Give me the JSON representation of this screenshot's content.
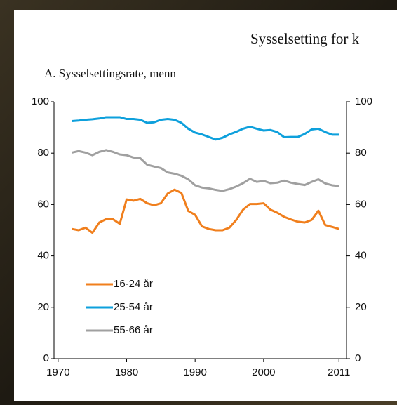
{
  "chart_data": {
    "type": "line",
    "title": "Sysselsetting for k",
    "subtitle": "A. Sysselsettingsrate, menn",
    "x": [
      1972,
      1973,
      1974,
      1975,
      1976,
      1977,
      1978,
      1979,
      1980,
      1981,
      1982,
      1983,
      1984,
      1985,
      1986,
      1987,
      1988,
      1989,
      1990,
      1991,
      1992,
      1993,
      1994,
      1995,
      1996,
      1997,
      1998,
      1999,
      2000,
      2001,
      2002,
      2003,
      2004,
      2005,
      2006,
      2007,
      2008,
      2009,
      2010,
      2011
    ],
    "series": [
      {
        "name": "16-24 år",
        "color": "#f07f1d",
        "values": [
          50.5,
          50,
          51,
          49,
          53,
          54.3,
          54.3,
          52.5,
          62,
          61.5,
          62.2,
          60.5,
          59.7,
          60.5,
          64.3,
          65.8,
          64.5,
          57.5,
          56,
          51.5,
          50.5,
          50,
          50,
          51,
          54,
          58,
          60.2,
          60.2,
          60.5,
          58,
          56.8,
          55.2,
          54.2,
          53.3,
          53,
          54,
          57.6,
          52,
          51.3,
          50.5
        ]
      },
      {
        "name": "25-54 år",
        "color": "#0ea0dc",
        "values": [
          92.5,
          92.7,
          93,
          93.2,
          93.5,
          94,
          94,
          94,
          93.3,
          93.3,
          93,
          91.8,
          92,
          93,
          93.3,
          93,
          91.8,
          89.5,
          88,
          87.3,
          86.3,
          85.3,
          86,
          87.3,
          88.3,
          89.5,
          90.3,
          89.5,
          88.8,
          89,
          88.2,
          86.2,
          86.3,
          86.3,
          87.5,
          89.2,
          89.5,
          88.2,
          87.2,
          87.2
        ]
      },
      {
        "name": "55-66 år",
        "color": "#a0a0a0",
        "values": [
          80.2,
          80.8,
          80.2,
          79.2,
          80.5,
          81.2,
          80.5,
          79.5,
          79.2,
          78.3,
          78,
          75.5,
          74.8,
          74.2,
          72.5,
          72,
          71.2,
          69.8,
          67.5,
          66.6,
          66.3,
          65.7,
          65.3,
          66,
          67,
          68.3,
          70,
          68.8,
          69.2,
          68.3,
          68.5,
          69.3,
          68.5,
          68,
          67.6,
          68.8,
          69.8,
          68.2,
          67.5,
          67.2
        ]
      }
    ],
    "xlim": [
      1969.4,
      2012.1
    ],
    "xticks": [
      1970,
      1980,
      1990,
      2000,
      2011
    ],
    "ylim": [
      0,
      100
    ],
    "yticks": [
      0,
      20,
      40,
      60,
      80,
      100
    ],
    "y2lim": [
      0,
      100
    ],
    "y2ticks": [
      0,
      20,
      40,
      60,
      80,
      100
    ],
    "legend": "lower left",
    "grid": false
  }
}
